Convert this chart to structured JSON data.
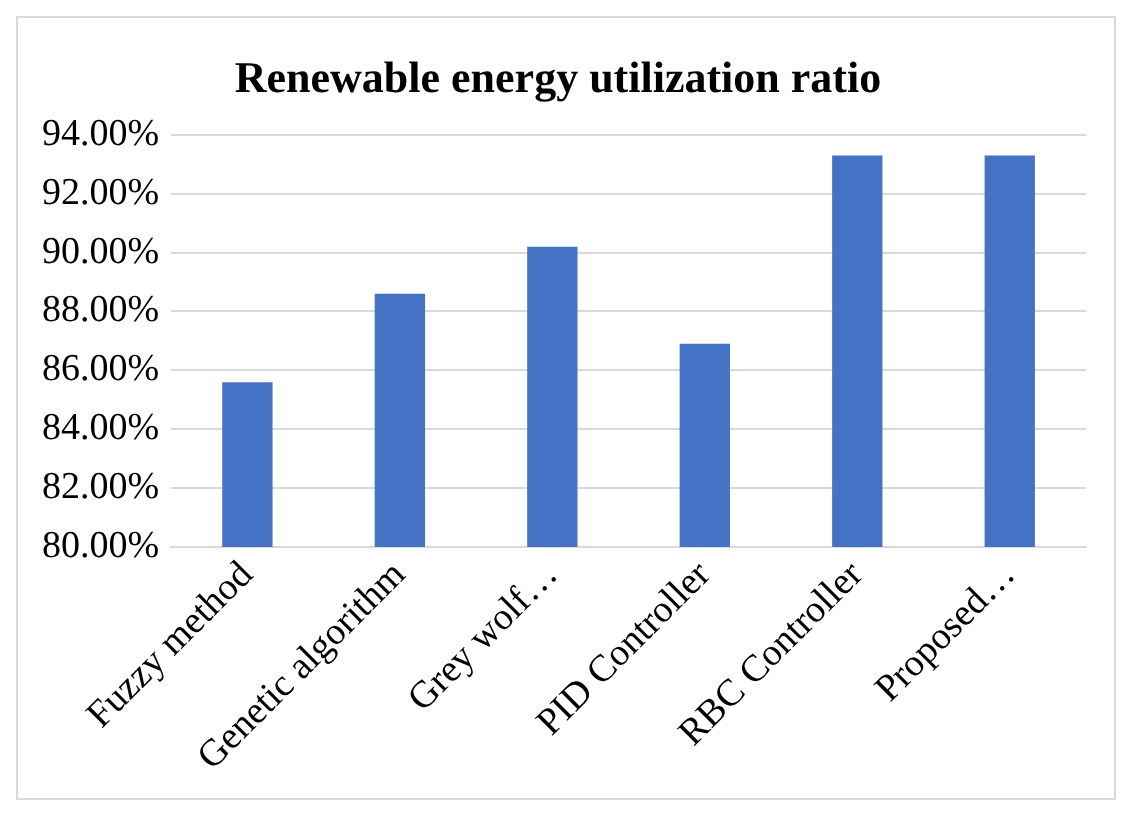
{
  "chart_data": {
    "type": "bar",
    "title": "Renewable energy utilization ratio",
    "categories": [
      "Fuzzy method",
      "Genetic algorithm",
      "Grey wolf…",
      "PID Controller",
      "RBC Controller",
      "Proposed…"
    ],
    "values": [
      85.6,
      88.6,
      90.2,
      86.9,
      93.3,
      93.3
    ],
    "color": "#4472c4",
    "ylim": [
      80,
      94
    ],
    "yticks": [
      {
        "value": 80,
        "label": "80.00%"
      },
      {
        "value": 82,
        "label": "82.00%"
      },
      {
        "value": 84,
        "label": "84.00%"
      },
      {
        "value": 86,
        "label": "86.00%"
      },
      {
        "value": 88,
        "label": "88.00%"
      },
      {
        "value": 90,
        "label": "90.00%"
      },
      {
        "value": 92,
        "label": "92.00%"
      },
      {
        "value": 94,
        "label": "94.00%"
      }
    ],
    "grid": "y"
  }
}
